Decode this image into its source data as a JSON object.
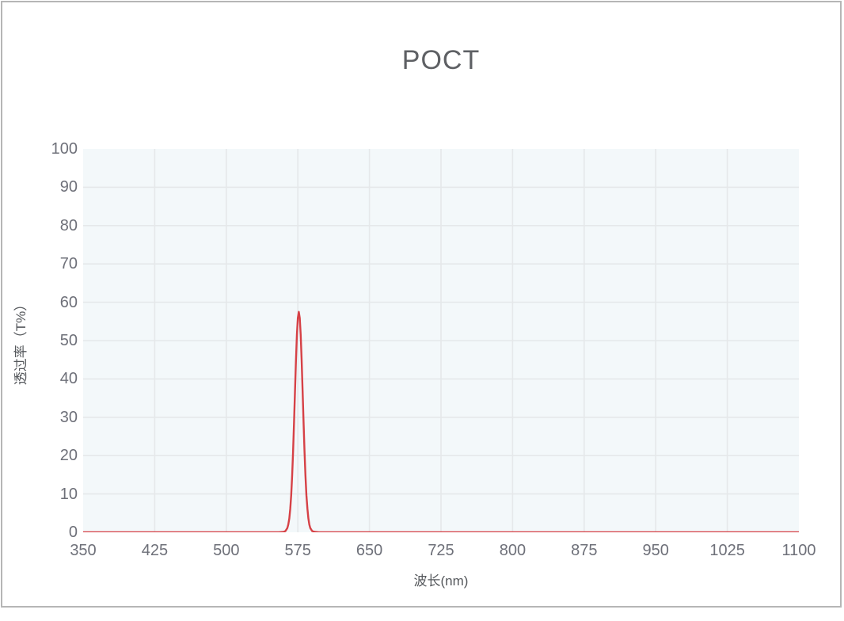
{
  "panel": {
    "border_color": "#b6b6b6",
    "background": "#ffffff"
  },
  "chart_data": {
    "type": "line",
    "title": "POCT",
    "xlabel": "波长(nm)",
    "ylabel": "透过率（T%）",
    "xlim": [
      350,
      1100
    ],
    "ylim": [
      0,
      100
    ],
    "xticks": [
      350,
      425,
      500,
      575,
      650,
      725,
      800,
      875,
      950,
      1025,
      1100
    ],
    "yticks": [
      0,
      10,
      20,
      30,
      40,
      50,
      60,
      70,
      80,
      90,
      100
    ],
    "grid": true,
    "legend_position": "none",
    "plot_bg": "#f3f8fa",
    "grid_color": "#e5e8ea",
    "tick_label_color": "#6e7079",
    "axis_title_color": "#55585c",
    "title_color": "#5e6064",
    "line_color": "#d64146",
    "peak": {
      "center_nm": 576,
      "max_transmittance_pct": 57.5,
      "fwhm_nm": 10
    },
    "series": [
      {
        "name": "透过率",
        "points": [
          [
            350,
            0
          ],
          [
            400,
            0
          ],
          [
            450,
            0
          ],
          [
            500,
            0
          ],
          [
            540,
            0
          ],
          [
            555,
            0
          ],
          [
            560,
            0.1
          ],
          [
            562,
            0.3
          ],
          [
            564,
            1.1
          ],
          [
            565,
            2.0
          ],
          [
            566,
            3.6
          ],
          [
            567,
            6.1
          ],
          [
            568,
            9.7
          ],
          [
            569,
            14.8
          ],
          [
            570,
            21.2
          ],
          [
            571,
            28.8
          ],
          [
            572,
            36.9
          ],
          [
            573,
            44.8
          ],
          [
            574,
            51.5
          ],
          [
            575,
            55.9
          ],
          [
            576,
            57.5
          ],
          [
            577,
            55.9
          ],
          [
            578,
            51.5
          ],
          [
            579,
            44.8
          ],
          [
            580,
            36.9
          ],
          [
            581,
            28.8
          ],
          [
            582,
            21.2
          ],
          [
            583,
            14.8
          ],
          [
            584,
            9.7
          ],
          [
            585,
            6.1
          ],
          [
            586,
            3.6
          ],
          [
            587,
            2.0
          ],
          [
            588,
            1.1
          ],
          [
            590,
            0.3
          ],
          [
            593,
            0.1
          ],
          [
            597,
            0
          ],
          [
            605,
            0
          ],
          [
            650,
            0
          ],
          [
            700,
            0
          ],
          [
            750,
            0
          ],
          [
            800,
            0
          ],
          [
            850,
            0
          ],
          [
            900,
            0
          ],
          [
            950,
            0
          ],
          [
            1000,
            0
          ],
          [
            1050,
            0
          ],
          [
            1100,
            0
          ]
        ]
      }
    ]
  }
}
